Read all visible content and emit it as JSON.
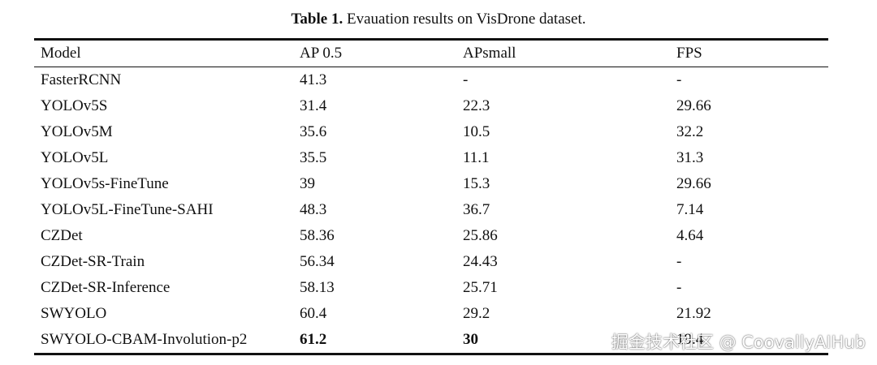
{
  "caption": {
    "label": "Table 1.",
    "text": " Evauation results on VisDrone dataset."
  },
  "table": {
    "headers": [
      "Model",
      "AP 0.5",
      "APsmall",
      "FPS"
    ],
    "rows": [
      {
        "model": "FasterRCNN",
        "ap50": "41.3",
        "apsmall": "-",
        "fps": "-"
      },
      {
        "model": "YOLOv5S",
        "ap50": "31.4",
        "apsmall": "22.3",
        "fps": "29.66"
      },
      {
        "model": "YOLOv5M",
        "ap50": "35.6",
        "apsmall": "10.5",
        "fps": "32.2"
      },
      {
        "model": "YOLOv5L",
        "ap50": "35.5",
        "apsmall": "11.1",
        "fps": "31.3"
      },
      {
        "model": "YOLOv5s-FineTune",
        "ap50": "39",
        "apsmall": "15.3",
        "fps": "29.66"
      },
      {
        "model": "YOLOv5L-FineTune-SAHI",
        "ap50": "48.3",
        "apsmall": "36.7",
        "fps": "7.14"
      },
      {
        "model": "CZDet",
        "ap50": "58.36",
        "apsmall": "25.86",
        "fps": "4.64"
      },
      {
        "model": "CZDet-SR-Train",
        "ap50": "56.34",
        "apsmall": "24.43",
        "fps": "-"
      },
      {
        "model": "CZDet-SR-Inference",
        "ap50": "58.13",
        "apsmall": "25.71",
        "fps": "-"
      },
      {
        "model": "SWYOLO",
        "ap50": "60.4",
        "apsmall": "29.2",
        "fps": "21.92"
      },
      {
        "model": "SWYOLO-CBAM-Involution-p2",
        "ap50": "61.2",
        "apsmall": "30",
        "fps": "19.4"
      }
    ]
  },
  "watermark": "掘金技术社区 @ CoovallyAIHub"
}
